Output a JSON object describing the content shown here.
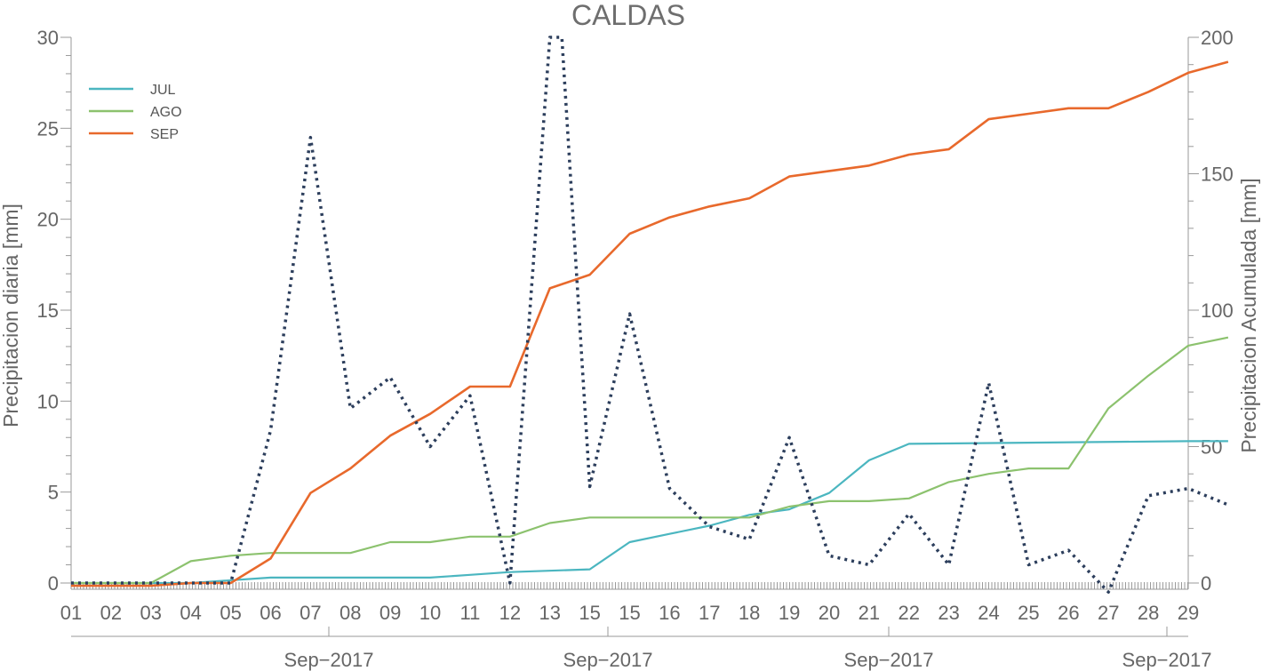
{
  "chart_data": {
    "type": "line",
    "title": "CALDAS",
    "ylabel_left": "Precipitacion diaria [mm]",
    "ylabel_right": "Precipitacion Acumulada [mm]",
    "ylim_left": [
      0,
      30
    ],
    "ylim_right": [
      0,
      200
    ],
    "yticks_left": [
      0,
      5,
      10,
      15,
      20,
      25,
      30
    ],
    "yticks_right": [
      0,
      50,
      100,
      150,
      200
    ],
    "x_tick_labels": [
      "01",
      "02",
      "03",
      "04",
      "05",
      "06",
      "07",
      "08",
      "09",
      "10",
      "11",
      "12",
      "13",
      "15",
      "15",
      "16",
      "17",
      "18",
      "19",
      "20",
      "21",
      "22",
      "23",
      "24",
      "25",
      "26",
      "27",
      "28",
      "29"
    ],
    "date_labels": [
      "Sep−2017",
      "Sep−2017",
      "Sep−2017",
      "Sep−2017"
    ],
    "grid": false,
    "legend_position": "top-left",
    "series": [
      {
        "name": "JUL",
        "axis": "right",
        "color": "#4bb6c0",
        "style": "solid",
        "x": [
          0,
          2,
          3,
          5,
          7,
          9,
          10,
          11,
          13,
          14,
          15,
          16,
          17,
          18,
          19,
          20,
          21,
          28,
          29
        ],
        "values": [
          0,
          0,
          0,
          2,
          2,
          2,
          3,
          4,
          5,
          15,
          18,
          21,
          25,
          27,
          33,
          45,
          51,
          52,
          52
        ]
      },
      {
        "name": "AGO",
        "axis": "right",
        "color": "#8cc26e",
        "style": "solid",
        "x": [
          0,
          2,
          3,
          4,
          5,
          6,
          7,
          8,
          9,
          10,
          11,
          12,
          13,
          14,
          15,
          16,
          17,
          18,
          19,
          20,
          21,
          22,
          23,
          24,
          25,
          26,
          27,
          28,
          29
        ],
        "values": [
          0,
          0,
          8,
          10,
          11,
          11,
          11,
          15,
          15,
          17,
          17,
          22,
          24,
          24,
          24,
          24,
          24,
          28,
          30,
          30,
          31,
          37,
          40,
          42,
          42,
          64,
          76,
          87,
          90
        ]
      },
      {
        "name": "SEP",
        "axis": "right",
        "color": "#e8692c",
        "style": "solid",
        "x": [
          0,
          1,
          2,
          3,
          4,
          5,
          6,
          7,
          8,
          9,
          10,
          11,
          12,
          13,
          14,
          15,
          16,
          17,
          18,
          19,
          20,
          21,
          22,
          23,
          24,
          25,
          26,
          27,
          28,
          29
        ],
        "values": [
          -1,
          -1,
          -1,
          0,
          0,
          9,
          33,
          42,
          54,
          62,
          72,
          72,
          108,
          113,
          128,
          134,
          138,
          141,
          149,
          151,
          153,
          157,
          159,
          170,
          172,
          174,
          174,
          180,
          187,
          191
        ]
      },
      {
        "name": "",
        "axis": "left",
        "color": "#2c3e5c",
        "style": "dotted",
        "x": [
          0,
          1,
          2,
          3,
          4,
          5,
          6,
          7,
          8,
          9,
          10,
          11,
          12,
          12.3,
          13,
          14,
          15,
          16,
          17,
          18,
          19,
          20,
          21,
          22,
          23,
          24,
          25,
          26,
          27,
          28,
          29
        ],
        "values": [
          0,
          0,
          0,
          0,
          0,
          8.4,
          24.5,
          9.6,
          11.3,
          7.5,
          10.3,
          0,
          30,
          30,
          5.3,
          14.8,
          5.2,
          3.1,
          2.4,
          8.0,
          1.5,
          1.0,
          3.8,
          1.0,
          11.0,
          1.0,
          1.8,
          -0.5,
          4.8,
          5.2,
          4.3
        ]
      }
    ]
  }
}
